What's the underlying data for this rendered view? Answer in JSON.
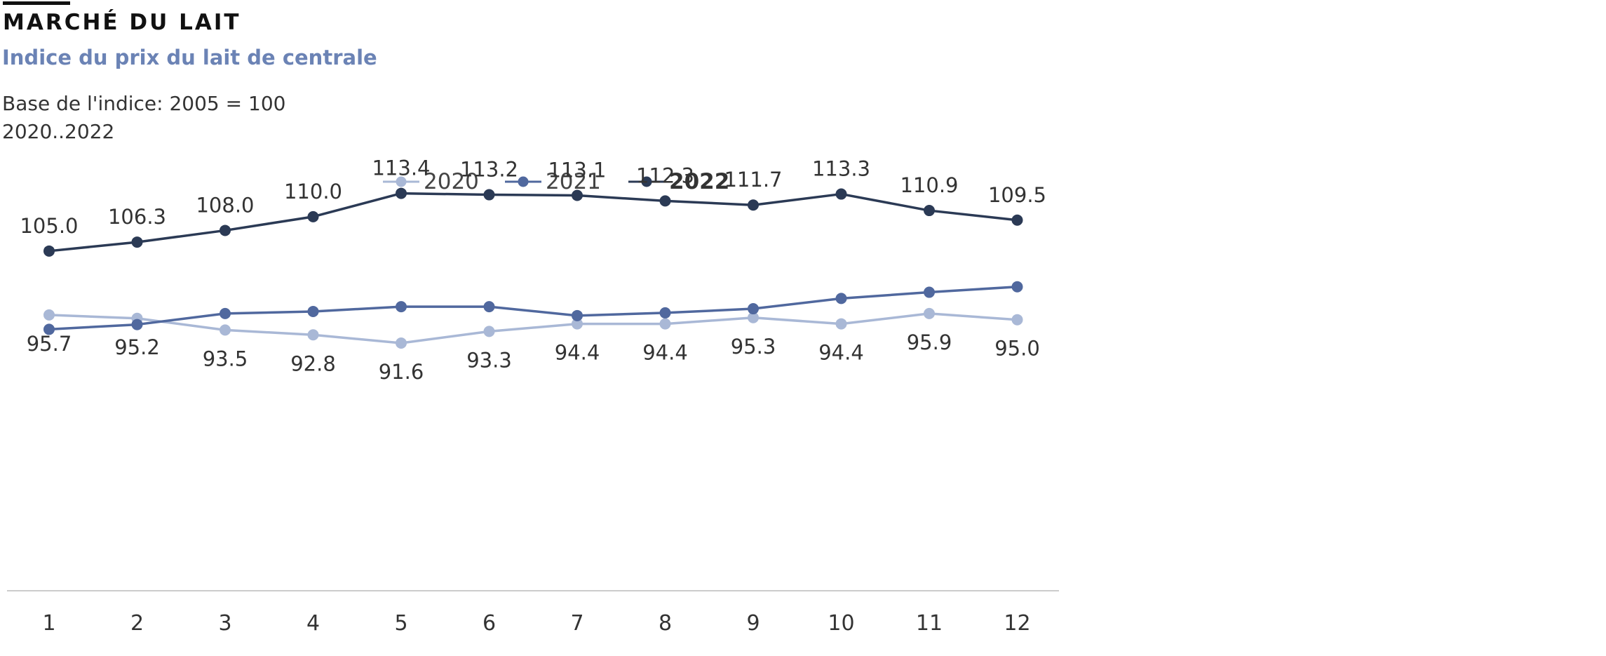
{
  "header": {
    "title": "MARCHÉ DU LAIT",
    "subtitle": "Indice du prix du lait de centrale",
    "base_note": "Base de l'indice: 2005 = 100",
    "period": "2020..2022"
  },
  "colors": {
    "title": "#111111",
    "subtitle": "#6b83b5",
    "axis": "#cccccc"
  },
  "chart_data": {
    "type": "line",
    "title": "Indice du prix du lait de centrale",
    "x": [
      1,
      2,
      3,
      4,
      5,
      6,
      7,
      8,
      9,
      10,
      11,
      12
    ],
    "series": [
      {
        "name": "2020",
        "color": "#a9b8d6",
        "values": [
          95.7,
          95.2,
          93.5,
          92.8,
          91.6,
          93.3,
          94.4,
          94.4,
          95.3,
          94.4,
          95.9,
          95.0
        ],
        "labels_shown": true,
        "label_position": "below"
      },
      {
        "name": "2021",
        "color": "#50689e",
        "values": [
          93.6,
          94.3,
          95.9,
          96.2,
          96.9,
          96.9,
          95.6,
          96.0,
          96.6,
          98.1,
          99.0,
          99.8
        ],
        "labels_shown": false
      },
      {
        "name": "2022",
        "color": "#2b3a55",
        "values": [
          105.0,
          106.3,
          108.0,
          110.0,
          113.4,
          113.2,
          113.1,
          112.3,
          111.7,
          113.3,
          110.9,
          109.5
        ],
        "labels_shown": true,
        "label_position": "above"
      }
    ],
    "legend": {
      "position": "top",
      "highlighted": "2022"
    },
    "grid": false,
    "xlabel": "",
    "ylabel": ""
  }
}
